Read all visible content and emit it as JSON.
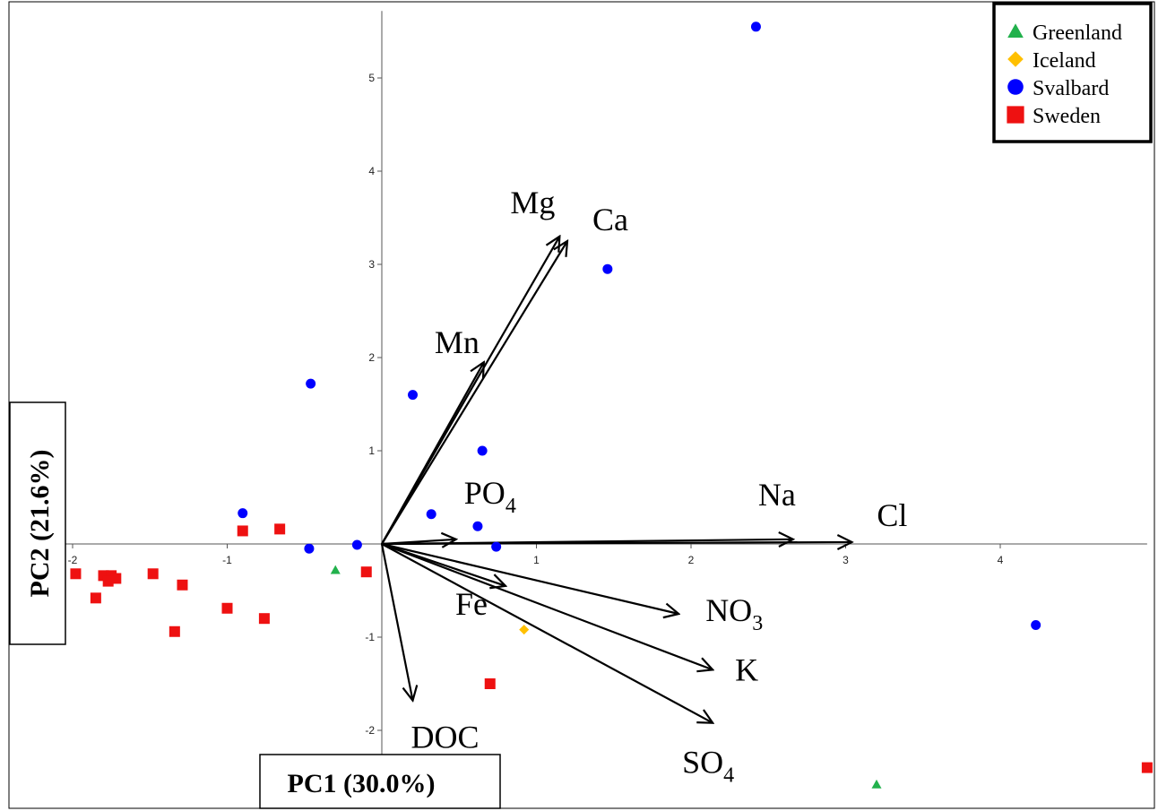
{
  "chart_data": {
    "type": "scatter",
    "subtype": "pca-biplot",
    "title": "",
    "xlabel": "PC1 (30.0%)",
    "ylabel": "PC2 (21.6%)",
    "xlim": [
      -2.05,
      4.95
    ],
    "ylim": [
      -2.6,
      5.7
    ],
    "x_ticks": [
      -2,
      -1,
      1,
      2,
      3,
      4
    ],
    "y_ticks": [
      -2,
      -1,
      1,
      2,
      3,
      4,
      5
    ],
    "grid": false,
    "legend_position": "top-right",
    "series": [
      {
        "name": "Greenland",
        "marker": "triangle",
        "color": "#22b14c",
        "points": [
          [
            -0.3,
            -0.28
          ],
          [
            3.2,
            -2.58
          ]
        ]
      },
      {
        "name": "Iceland",
        "marker": "diamond",
        "color": "#ffc000",
        "points": [
          [
            0.92,
            -0.92
          ]
        ]
      },
      {
        "name": "Svalbard",
        "marker": "circle",
        "color": "#0000ff",
        "points": [
          [
            2.42,
            5.55
          ],
          [
            1.46,
            2.95
          ],
          [
            -0.46,
            1.72
          ],
          [
            0.2,
            1.6
          ],
          [
            0.65,
            1.0
          ],
          [
            0.32,
            0.32
          ],
          [
            -0.9,
            0.33
          ],
          [
            0.62,
            0.19
          ],
          [
            0.74,
            -0.03
          ],
          [
            -0.47,
            -0.05
          ],
          [
            -0.16,
            -0.01
          ],
          [
            4.23,
            -0.87
          ]
        ]
      },
      {
        "name": "Sweden",
        "marker": "square",
        "color": "#ee1111",
        "points": [
          [
            -1.98,
            -0.32
          ],
          [
            -1.8,
            -0.34
          ],
          [
            -1.75,
            -0.34
          ],
          [
            -1.72,
            -0.37
          ],
          [
            -1.77,
            -0.4
          ],
          [
            -1.85,
            -0.58
          ],
          [
            -1.48,
            -0.32
          ],
          [
            -1.29,
            -0.44
          ],
          [
            -1.0,
            -0.69
          ],
          [
            -0.76,
            -0.8
          ],
          [
            -1.34,
            -0.94
          ],
          [
            -0.9,
            0.14
          ],
          [
            -0.66,
            0.16
          ],
          [
            -0.1,
            -0.3
          ],
          [
            0.7,
            -1.5
          ],
          [
            4.95,
            -2.4
          ]
        ]
      }
    ],
    "loadings": [
      {
        "label": "Mg",
        "x": 1.15,
        "y": 3.3
      },
      {
        "label": "Ca",
        "x": 1.2,
        "y": 3.25
      },
      {
        "label": "Mn",
        "x": 0.66,
        "y": 1.95
      },
      {
        "label": "PO",
        "sub": "4",
        "x": 0.48,
        "y": 0.05
      },
      {
        "label": "Na",
        "x": 2.66,
        "y": 0.05
      },
      {
        "label": "Cl",
        "x": 3.04,
        "y": 0.02
      },
      {
        "label": "Fe",
        "x": 0.8,
        "y": -0.45
      },
      {
        "label": "NO",
        "sub": "3",
        "x": 1.92,
        "y": -0.75
      },
      {
        "label": "K",
        "x": 2.14,
        "y": -1.35
      },
      {
        "label": "SO",
        "sub": "4",
        "x": 2.14,
        "y": -1.92
      },
      {
        "label": "DOC",
        "x": 0.2,
        "y": -1.68
      }
    ]
  }
}
